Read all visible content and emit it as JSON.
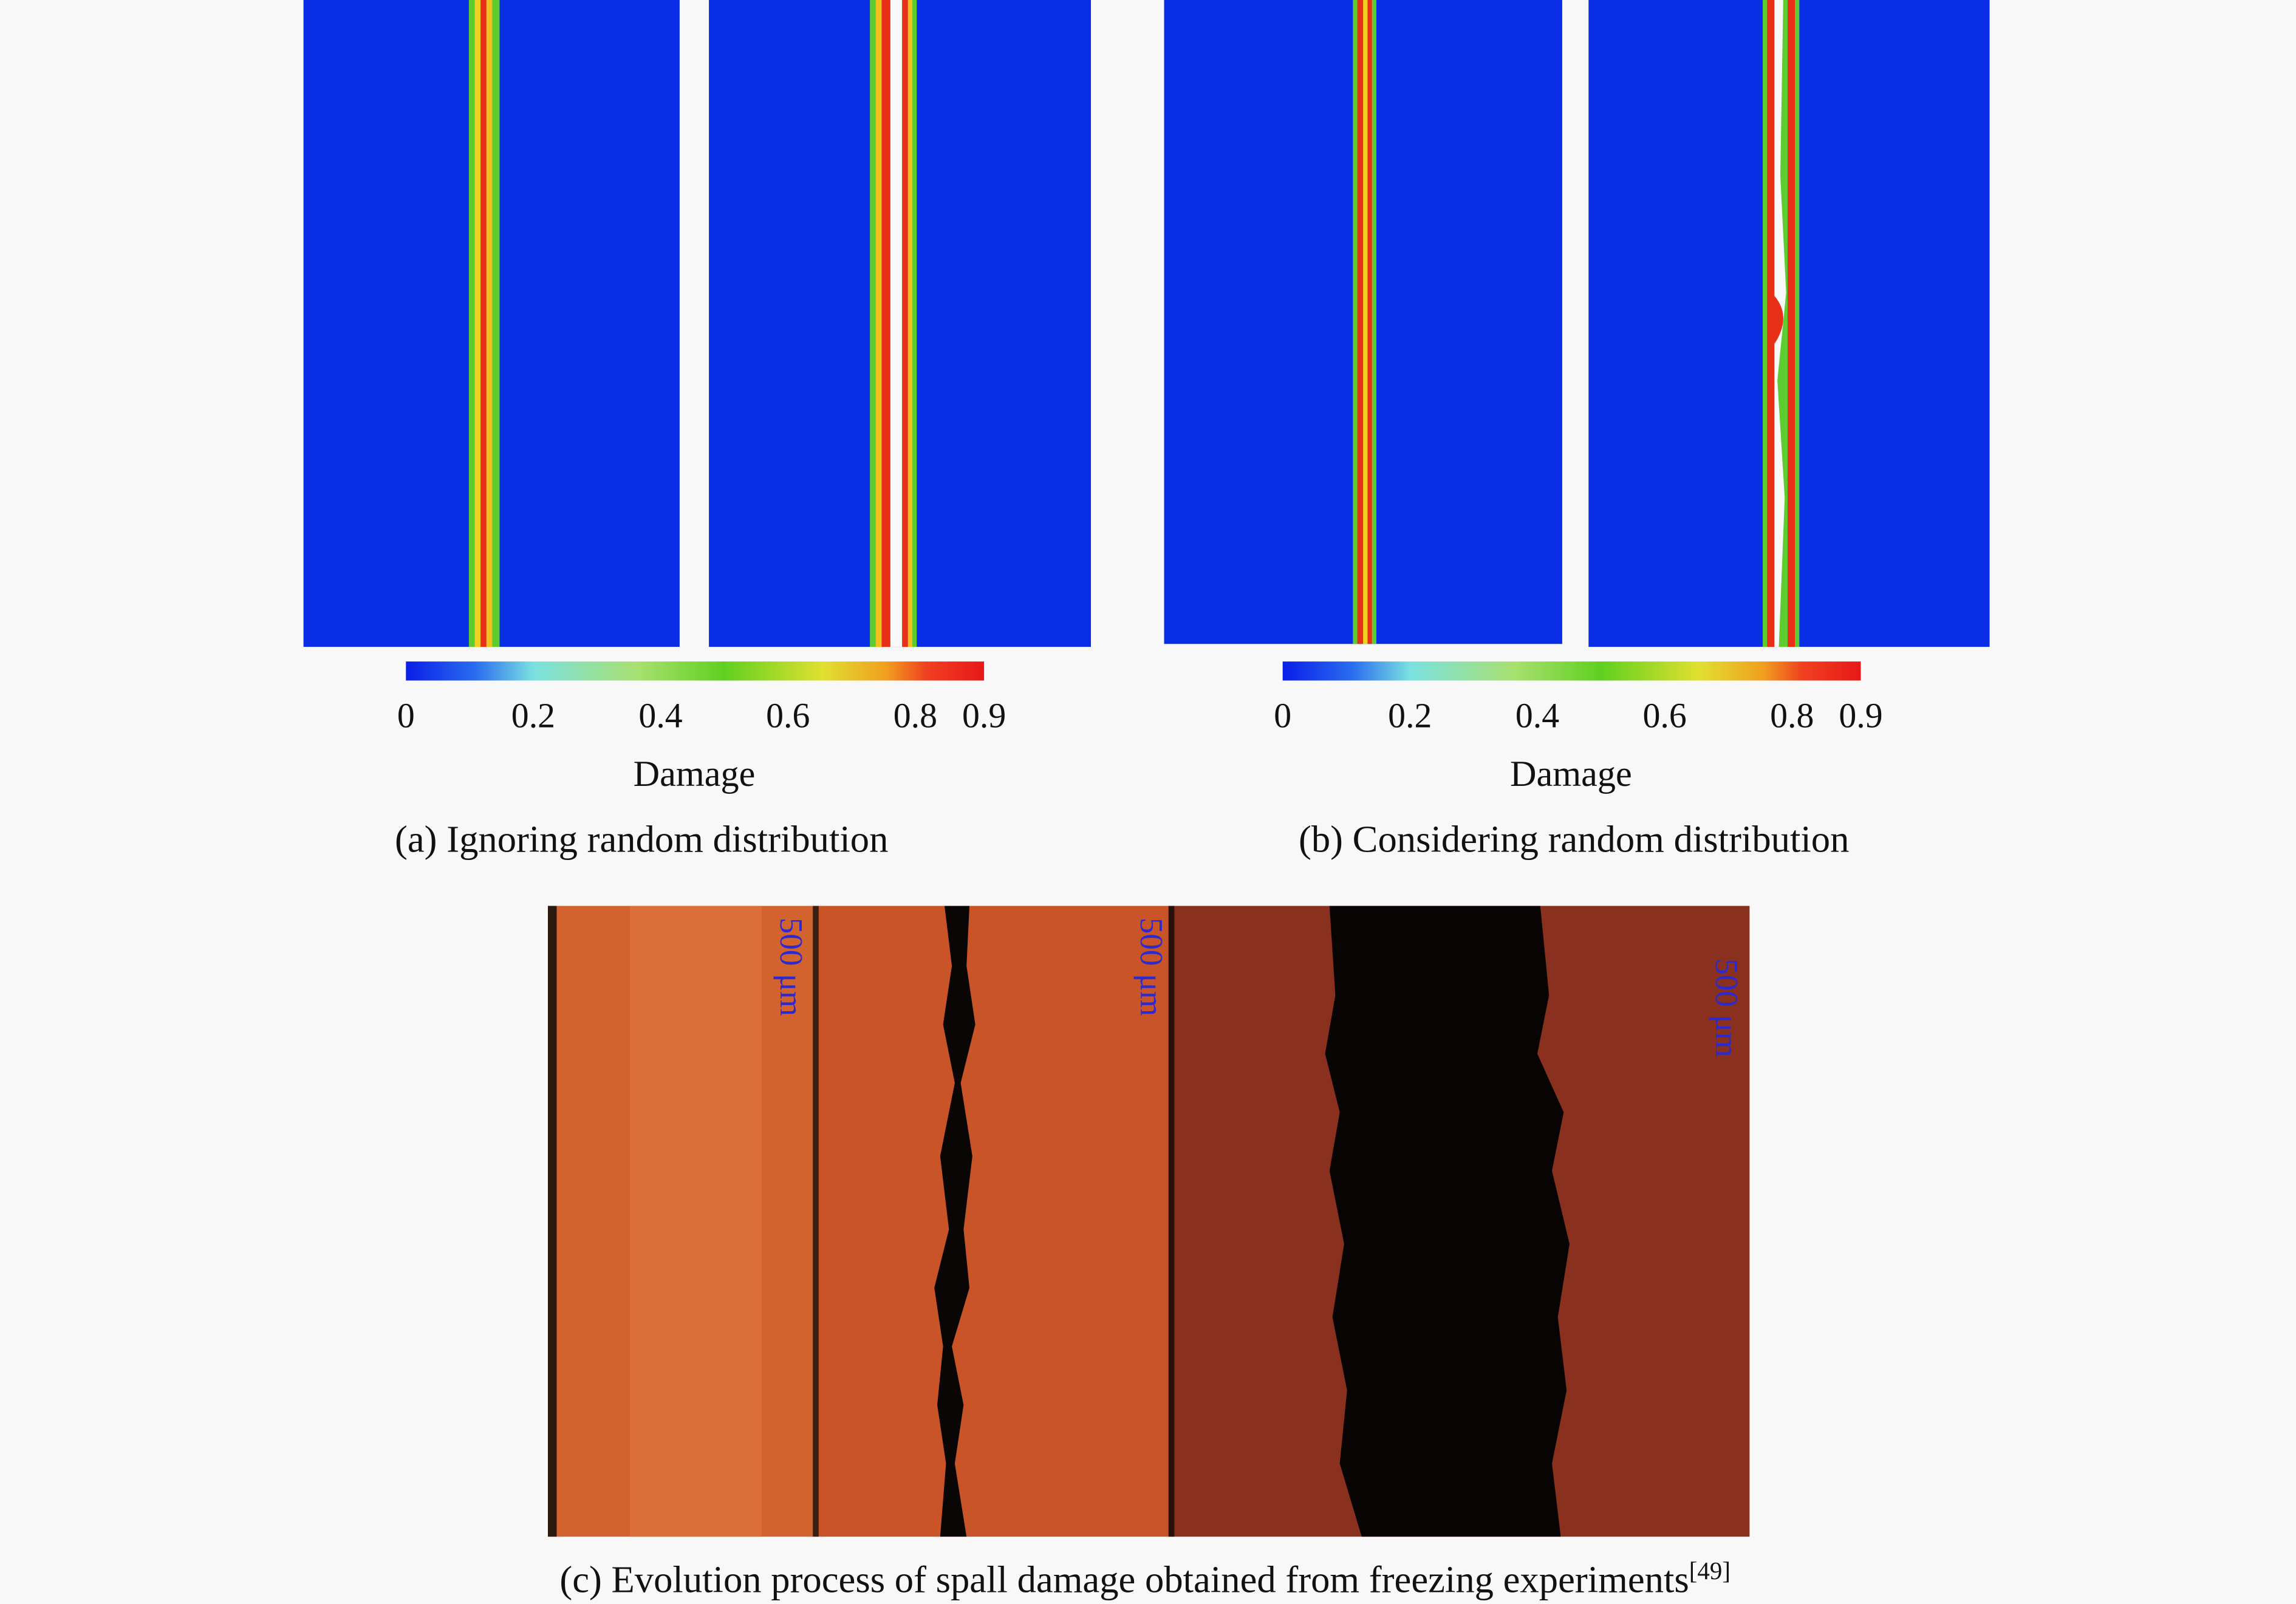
{
  "panels": [
    {
      "colorbar": {
        "ticks": [
          "0",
          "0.2",
          "0.4",
          "0.6",
          "0.8",
          "0.9"
        ],
        "label": "Damage"
      },
      "caption": "(a) Ignoring random distribution"
    },
    {
      "colorbar": {
        "ticks": [
          "0",
          "0.2",
          "0.4",
          "0.6",
          "0.8",
          "0.9"
        ],
        "label": "Damage"
      },
      "caption": "(b) Considering random distribution"
    }
  ],
  "experiment": {
    "scale_labels": [
      "500 μm",
      "500 μm",
      "500 μm"
    ],
    "caption": "(c) Evolution process of spall damage obtained from freezing experiments",
    "caption_ref": "[49]"
  }
}
